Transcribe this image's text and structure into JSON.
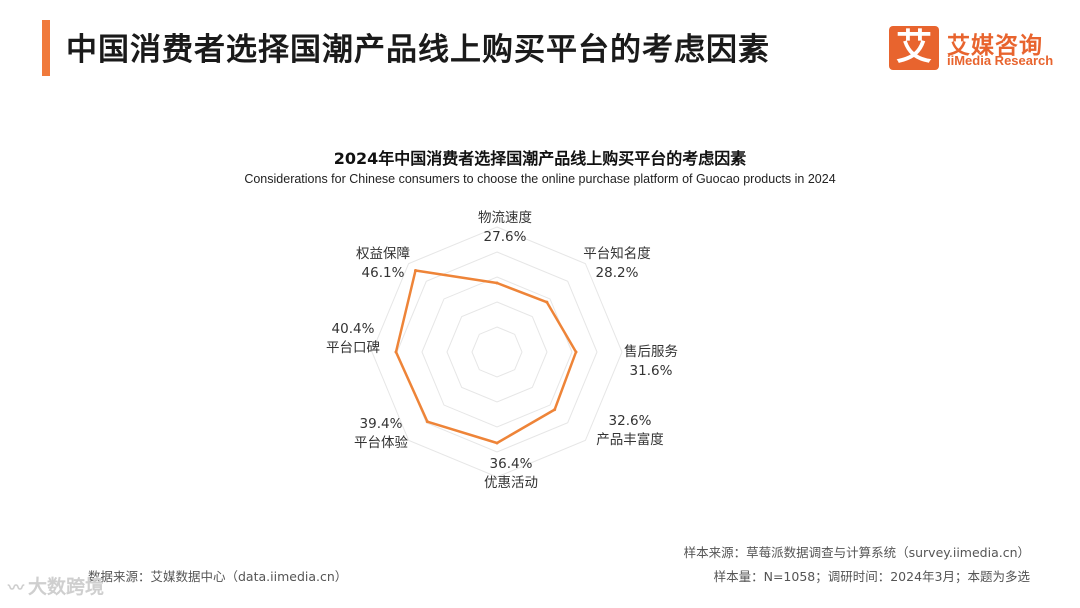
{
  "header": {
    "title": "中国消费者选择国潮产品线上购买平台的考虑因素"
  },
  "logo": {
    "mark": "艾",
    "name_cn": "艾媒咨询",
    "name_en": "iiMedia Research"
  },
  "colors": {
    "accent": "#f07a3c",
    "series": "#ee8438",
    "grid": "#e6e6e6"
  },
  "chart_data": {
    "type": "radar",
    "title": "2024年中国消费者选择国潮产品线上购买平台的考虑因素",
    "subtitle": "Considerations for Chinese consumers to choose the online purchase platform of Guocao products in 2024",
    "categories": [
      "物流速度",
      "平台知名度",
      "售后服务",
      "产品丰富度",
      "优惠活动",
      "平台体验",
      "平台口碑",
      "权益保障"
    ],
    "values": [
      27.6,
      28.2,
      31.6,
      32.6,
      36.4,
      39.4,
      40.4,
      46.1
    ],
    "value_labels": [
      "27.6%",
      "28.2%",
      "31.6%",
      "32.6%",
      "36.4%",
      "39.4%",
      "40.4%",
      "46.1%"
    ],
    "rmax": 50,
    "grid_rings": 5
  },
  "footer": {
    "data_source": "数据来源：艾媒数据中心（data.iimedia.cn）",
    "sample_source": "样本来源：草莓派数据调查与计算系统（survey.iimedia.cn）",
    "sample_info": "样本量：N=1058；调研时间：2024年3月；本题为多选"
  },
  "watermark": {
    "text": "大数跨境"
  }
}
